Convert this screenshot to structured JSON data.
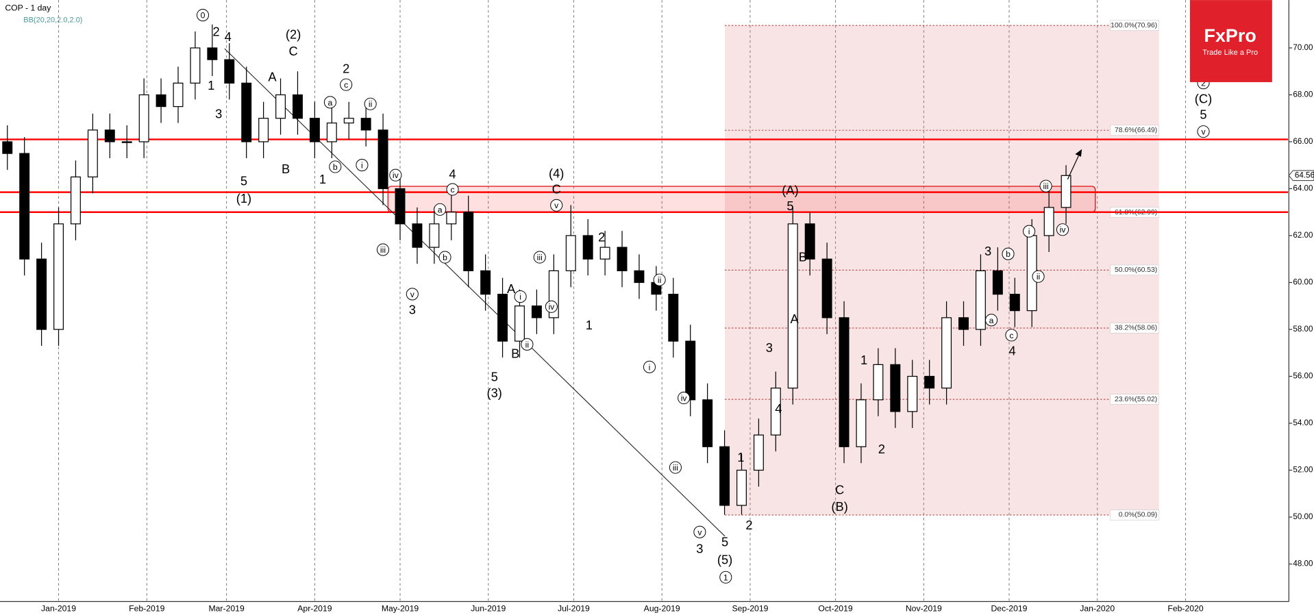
{
  "chart_data": {
    "type": "candlestick",
    "title": "COP - 1 day",
    "subtitle": "BB(20,20,2.0,2.0)",
    "logo": {
      "name": "FxPro",
      "tagline": "Trade Like a Pro"
    },
    "x": [
      2,
      8,
      14,
      20,
      26,
      32,
      38,
      44,
      50,
      56,
      62,
      68,
      74,
      80,
      86,
      92,
      98,
      104,
      110,
      116,
      122,
      128,
      134,
      140,
      146,
      152,
      158,
      164,
      170,
      176,
      182,
      188,
      194,
      200,
      206,
      212,
      218,
      224,
      230,
      236,
      242,
      248,
      254,
      260,
      266,
      272,
      278,
      284,
      290,
      296,
      302,
      308,
      314,
      320,
      326,
      332,
      338,
      344,
      350,
      356,
      362,
      368,
      374
    ],
    "open": [
      66.0,
      65.5,
      61.0,
      58.0,
      62.5,
      64.5,
      66.5,
      66.0,
      66.0,
      68.0,
      67.5,
      68.5,
      70.0,
      69.5,
      68.5,
      66.0,
      67.0,
      68.0,
      67.0,
      66.0,
      66.8,
      67.0,
      66.5,
      64.0,
      62.5,
      61.5,
      62.5,
      63.0,
      60.5,
      59.5,
      57.5,
      59.0,
      58.5,
      60.5,
      62.0,
      61.0,
      61.5,
      60.5,
      60.0,
      59.5,
      57.5,
      55.0,
      53.0,
      50.5,
      52.0,
      53.5,
      55.5,
      62.5,
      61.0,
      58.5,
      53.0,
      55.0,
      56.5,
      54.5,
      56.0,
      55.5,
      58.5,
      58.0,
      60.5,
      59.5,
      58.8,
      62.0,
      63.2
    ],
    "high": [
      66.7,
      66.2,
      61.7,
      63.2,
      65.2,
      67.2,
      67.2,
      66.7,
      68.7,
      68.7,
      69.2,
      70.7,
      71.0,
      70.2,
      69.2,
      67.7,
      68.7,
      69.0,
      67.7,
      67.5,
      67.7,
      67.7,
      67.2,
      64.7,
      63.2,
      63.2,
      64.2,
      63.7,
      61.2,
      60.2,
      59.7,
      59.7,
      61.2,
      63.3,
      62.7,
      62.2,
      62.2,
      61.2,
      60.7,
      60.2,
      58.2,
      55.7,
      53.7,
      52.7,
      54.2,
      56.2,
      63.2,
      63.0,
      61.7,
      59.2,
      55.7,
      57.2,
      57.2,
      56.7,
      56.7,
      59.2,
      59.2,
      61.2,
      61.5,
      60.2,
      62.7,
      63.9,
      65.0
    ],
    "low": [
      64.8,
      60.3,
      57.3,
      57.3,
      61.8,
      63.8,
      65.3,
      65.3,
      65.3,
      66.8,
      66.8,
      67.8,
      68.8,
      67.8,
      65.3,
      65.3,
      66.3,
      66.3,
      65.3,
      65.3,
      66.1,
      65.8,
      63.3,
      61.8,
      60.8,
      60.8,
      61.8,
      59.8,
      58.8,
      56.8,
      56.8,
      57.8,
      57.8,
      59.8,
      60.3,
      60.3,
      59.8,
      59.3,
      58.8,
      56.8,
      54.3,
      52.3,
      50.1,
      50.1,
      51.3,
      52.8,
      54.8,
      60.3,
      57.8,
      52.3,
      52.3,
      54.3,
      53.8,
      53.8,
      54.8,
      54.8,
      57.3,
      57.3,
      58.8,
      58.1,
      58.1,
      61.3,
      62.5
    ],
    "close": [
      65.5,
      61.0,
      58.0,
      62.5,
      64.5,
      66.5,
      66.0,
      66.0,
      68.0,
      67.5,
      68.5,
      70.0,
      69.5,
      68.5,
      66.0,
      67.0,
      68.0,
      67.0,
      66.0,
      66.8,
      67.0,
      66.5,
      64.0,
      62.5,
      61.5,
      62.5,
      63.0,
      60.5,
      59.5,
      57.5,
      59.0,
      58.5,
      60.5,
      62.0,
      61.0,
      61.5,
      60.5,
      60.0,
      59.5,
      57.5,
      55.0,
      53.0,
      50.5,
      52.0,
      53.5,
      55.5,
      62.5,
      61.0,
      58.5,
      53.0,
      55.0,
      56.5,
      54.5,
      56.0,
      55.5,
      58.5,
      58.0,
      60.5,
      59.5,
      58.8,
      62.0,
      63.2,
      64.56
    ],
    "xlim": [
      0,
      452
    ],
    "xticks": [
      {
        "value": 20,
        "label": "Jan-2019"
      },
      {
        "value": 51,
        "label": "Feb-2019"
      },
      {
        "value": 79,
        "label": "Mar-2019"
      },
      {
        "value": 110,
        "label": "Apr-2019"
      },
      {
        "value": 140,
        "label": "May-2019"
      },
      {
        "value": 171,
        "label": "Jun-2019"
      },
      {
        "value": 201,
        "label": "Jul-2019"
      },
      {
        "value": 232,
        "label": "Aug-2019"
      },
      {
        "value": 263,
        "label": "Sep-2019"
      },
      {
        "value": 293,
        "label": "Oct-2019"
      },
      {
        "value": 324,
        "label": "Nov-2019"
      },
      {
        "value": 354,
        "label": "Dec-2019"
      },
      {
        "value": 385,
        "label": "Jan-2020"
      },
      {
        "value": 416,
        "label": "Feb-2020"
      }
    ],
    "ylim": [
      46.4,
      72.04
    ],
    "yticks": [
      {
        "value": 48,
        "label": "48.00"
      },
      {
        "value": 50,
        "label": "50.00"
      },
      {
        "value": 52,
        "label": "52.00"
      },
      {
        "value": 54,
        "label": "54.00"
      },
      {
        "value": 56,
        "label": "56.00"
      },
      {
        "value": 58,
        "label": "58.00"
      },
      {
        "value": 60,
        "label": "60.00"
      },
      {
        "value": 62,
        "label": "62.00"
      },
      {
        "value": 64,
        "label": "64.00"
      },
      {
        "value": 66,
        "label": "66.00"
      },
      {
        "value": 68,
        "label": "68.00"
      },
      {
        "value": 70,
        "label": "70.00"
      }
    ],
    "fib_levels": [
      {
        "value": 70.96,
        "label": "100.0%(70.96)"
      },
      {
        "value": 66.49,
        "label": "78.6%(66.49)"
      },
      {
        "value": 62.99,
        "label": "61.8%(62.99)"
      },
      {
        "value": 60.53,
        "label": "50.0%(60.53)"
      },
      {
        "value": 58.06,
        "label": "38.2%(58.06)"
      },
      {
        "value": 55.02,
        "label": "23.6%(55.02)"
      },
      {
        "value": 50.09,
        "label": "0.0%(50.09)"
      }
    ],
    "hlines": [
      66.1,
      63.85,
      63.0
    ],
    "zone": [
      63.0,
      64.1
    ],
    "wave_labels": [
      "0",
      "2",
      "4",
      "1",
      "3",
      "5",
      "(1)",
      "(2)",
      "C",
      "A",
      "B",
      "2",
      "c",
      "a",
      "ii",
      "i",
      "b",
      "1",
      "iv",
      "iii",
      "4",
      "c",
      "a",
      "b",
      "v",
      "3",
      "(4)",
      "C",
      "v",
      "iii",
      "iv",
      "2",
      "1",
      "A",
      "i",
      "ii",
      "B",
      "5",
      "(3)",
      "ii",
      "i",
      "iv",
      "4",
      "iii",
      "v",
      "3",
      "5",
      "(5)",
      "1",
      "1",
      "2",
      "3",
      "4",
      "(A)",
      "5",
      "B",
      "A",
      "C",
      "(B)",
      "1",
      "2",
      "3",
      "b",
      "i",
      "ii",
      "a",
      "c",
      "4",
      "iii",
      "iv",
      "2",
      "(C)",
      "5",
      "v"
    ]
  }
}
